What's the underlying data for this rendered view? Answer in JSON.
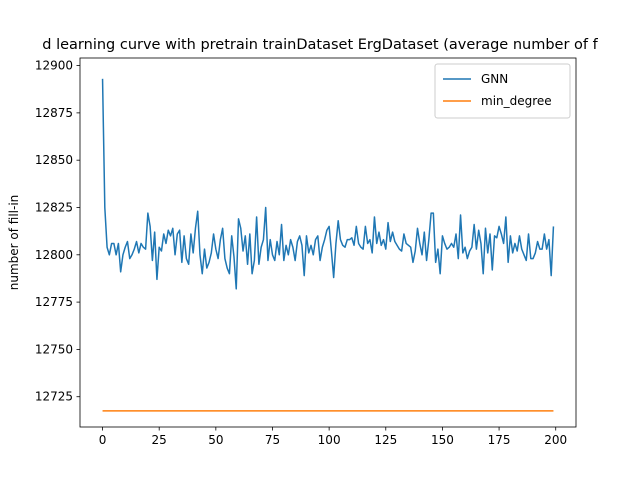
{
  "chart_data": {
    "type": "line",
    "title": "d learning curve with pretrain trainDataset ErgDataset (average number of f",
    "xlabel": "",
    "ylabel": "number of fill-in",
    "xlim": [
      -9.95,
      208.95
    ],
    "ylim": [
      12709,
      12904
    ],
    "xticks": [
      0,
      25,
      50,
      75,
      100,
      125,
      150,
      175,
      200
    ],
    "yticks": [
      12725,
      12750,
      12775,
      12800,
      12825,
      12850,
      12875,
      12900
    ],
    "legend_position": "top-right",
    "grid": false,
    "series": [
      {
        "name": "GNN",
        "color": "#1f77b4",
        "x": [
          0,
          1,
          2,
          3,
          4,
          5,
          6,
          7,
          8,
          9,
          10,
          11,
          12,
          13,
          14,
          15,
          16,
          17,
          18,
          19,
          20,
          21,
          22,
          23,
          24,
          25,
          26,
          27,
          28,
          29,
          30,
          31,
          32,
          33,
          34,
          35,
          36,
          37,
          38,
          39,
          40,
          41,
          42,
          43,
          44,
          45,
          46,
          47,
          48,
          49,
          50,
          51,
          52,
          53,
          54,
          55,
          56,
          57,
          58,
          59,
          60,
          61,
          62,
          63,
          64,
          65,
          66,
          67,
          68,
          69,
          70,
          71,
          72,
          73,
          74,
          75,
          76,
          77,
          78,
          79,
          80,
          81,
          82,
          83,
          84,
          85,
          86,
          87,
          88,
          89,
          90,
          91,
          92,
          93,
          94,
          95,
          96,
          97,
          98,
          99,
          100,
          101,
          102,
          103,
          104,
          105,
          106,
          107,
          108,
          109,
          110,
          111,
          112,
          113,
          114,
          115,
          116,
          117,
          118,
          119,
          120,
          121,
          122,
          123,
          124,
          125,
          126,
          127,
          128,
          129,
          130,
          131,
          132,
          133,
          134,
          135,
          136,
          137,
          138,
          139,
          140,
          141,
          142,
          143,
          144,
          145,
          146,
          147,
          148,
          149,
          150,
          151,
          152,
          153,
          154,
          155,
          156,
          157,
          158,
          159,
          160,
          161,
          162,
          163,
          164,
          165,
          166,
          167,
          168,
          169,
          170,
          171,
          172,
          173,
          174,
          175,
          176,
          177,
          178,
          179,
          180,
          181,
          182,
          183,
          184,
          185,
          186,
          187,
          188,
          189,
          190,
          191,
          192,
          193,
          194,
          195,
          196,
          197,
          198,
          199
        ],
        "values": [
          12893,
          12825,
          12804,
          12800,
          12806,
          12806,
          12800,
          12806,
          12791,
          12800,
          12804,
          12807,
          12798,
          12800,
          12803,
          12807,
          12801,
          12806,
          12804,
          12803,
          12822,
          12815,
          12797,
          12812,
          12787,
          12804,
          12802,
          12811,
          12806,
          12813,
          12810,
          12814,
          12800,
          12811,
          12813,
          12796,
          12810,
          12798,
          12795,
          12811,
          12801,
          12814,
          12823,
          12800,
          12790,
          12803,
          12793,
          12796,
          12801,
          12811,
          12803,
          12798,
          12808,
          12814,
          12798,
          12793,
          12790,
          12810,
          12799,
          12782,
          12819,
          12814,
          12802,
          12810,
          12795,
          12811,
          12790,
          12797,
          12820,
          12795,
          12804,
          12808,
          12825,
          12797,
          12808,
          12800,
          12797,
          12807,
          12800,
          12816,
          12797,
          12805,
          12800,
          12808,
          12804,
          12797,
          12807,
          12810,
          12805,
          12789,
          12810,
          12801,
          12805,
          12800,
          12808,
          12810,
          12797,
          12804,
          12808,
          12813,
          12815,
          12802,
          12788,
          12806,
          12818,
          12808,
          12805,
          12804,
          12808,
          12808,
          12809,
          12805,
          12815,
          12806,
          12804,
          12803,
          12815,
          12806,
          12808,
          12801,
          12820,
          12806,
          12812,
          12805,
          12808,
          12803,
          12817,
          12807,
          12812,
          12807,
          12805,
          12803,
          12802,
          12811,
          12806,
          12805,
          12804,
          12796,
          12802,
          12814,
          12806,
          12800,
          12812,
          12797,
          12808,
          12822,
          12822,
          12796,
          12803,
          12790,
          12810,
          12806,
          12803,
          12804,
          12806,
          12804,
          12811,
          12798,
          12821,
          12801,
          12804,
          12798,
          12802,
          12804,
          12816,
          12803,
          12813,
          12806,
          12790,
          12814,
          12801,
          12811,
          12792,
          12810,
          12809,
          12815,
          12811,
          12806,
          12820,
          12796,
          12810,
          12801,
          12806,
          12802,
          12810,
          12803,
          12800,
          12797,
          12811,
          12798,
          12798,
          12801,
          12807,
          12803,
          12803,
          12811,
          12803,
          12808,
          12789,
          12815
        ]
      },
      {
        "name": "min_degree",
        "color": "#ff7f0e",
        "x": [
          0,
          199
        ],
        "values": [
          12717.5,
          12717.5
        ]
      }
    ]
  }
}
